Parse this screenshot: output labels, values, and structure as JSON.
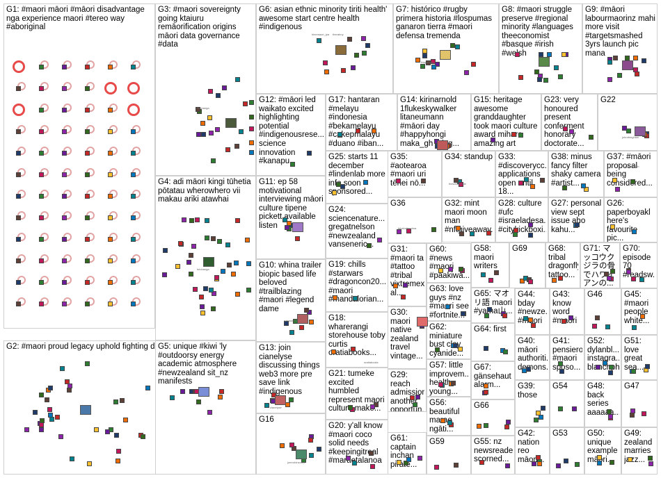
{
  "graph": {
    "groups": [
      {
        "id": "G1",
        "label": "G1: #maori māori #māori disadvantage nga experience maori #tereo way #aboriginal"
      },
      {
        "id": "G2",
        "label": "G2: #maori proud legacy uphold fighting defeating fascism uriohau"
      },
      {
        "id": "G3",
        "label": "G3: #maori sovereignty going ktaiuru remāorification origins māori data governance #data"
      },
      {
        "id": "G4",
        "label": "G4: adi māori kingi tūhetia pōtatau wherowhero vii makau ariki atawhai"
      },
      {
        "id": "G5",
        "label": "G5: unique #kiwi 'ly #outdoorsy energy academic atmosphere #newzealand sit_nz manifests"
      },
      {
        "id": "G6",
        "label": "G6: asian ethnic minority tiriti health' awesome start centre health #indigenous"
      },
      {
        "id": "G7",
        "label": "G7: histórico #rugby primera historia #lospumas ganaron tierra #maori defensa tremenda"
      },
      {
        "id": "G8",
        "label": "G8: #maori struggle preserve #regional minority #languages theeconomist #basque #irish #welsh"
      },
      {
        "id": "G9",
        "label": "G9: #māori labourmaorinz mahi more visit #targetsmashed 3yrs launch pic mana"
      },
      {
        "id": "G10",
        "label": "G10: whina trailer biopic based life beloved #trailblazing #maori #legend dame"
      },
      {
        "id": "G11",
        "label": "G11: ep 58 motivational interviewing māori culture tipene pickett available listen"
      },
      {
        "id": "G12",
        "label": "G12: #māori led waikato excited highlighting potential #indigenousrese... science innovation #kanapu"
      },
      {
        "id": "G13",
        "label": "G13: join cianelyse discussing things web3 more pre save link #indigenous"
      },
      {
        "id": "G14",
        "label": "G14: kirinarnold 1flukeskywalker litaneumann #māori day #happyhongi maka_gh thing..."
      },
      {
        "id": "G15",
        "label": "G15: heritage awesome granddaughter took maori culture award miharo amazing art"
      },
      {
        "id": "G16",
        "label": "G16"
      },
      {
        "id": "G17",
        "label": "G17: hantaran #melayu #indonesia #bekamelayu #cakepmalayu #duano #iban..."
      },
      {
        "id": "G18",
        "label": "G18: wharerangi storehouse toby curtis oratiabooks..."
      },
      {
        "id": "G19",
        "label": "G19: chills #starwars #dragoncon20... #maori #mandalorian..."
      },
      {
        "id": "G20",
        "label": "G20: y'all know #maori coco solid needs #keepingitreal #maraetalanoa"
      },
      {
        "id": "G21",
        "label": "G21: tumeke excited humbled represent maori culture make..."
      },
      {
        "id": "G22",
        "label": "G22"
      },
      {
        "id": "G23",
        "label": "G23: very honoured present conferment honorary doctorate..."
      },
      {
        "id": "G24",
        "label": "G24: sciencenature... gregatnelson #newzealand vanseneric..."
      },
      {
        "id": "G25",
        "label": "G25: starts 11 december #lindenlab more info soon sponsored..."
      },
      {
        "id": "G26",
        "label": "G26: paperboyakl here's favourite pic..."
      },
      {
        "id": "G27",
        "label": "G27: personal view sept issue aho kahu..."
      },
      {
        "id": "G28",
        "label": "G28: culture #ufc #israeladesa... #citykickboxi..."
      },
      {
        "id": "G29",
        "label": "G29: reach admission another opportun... communi..."
      },
      {
        "id": "G30",
        "label": "G30: maori native zealand travel vintage..."
      },
      {
        "id": "G31",
        "label": "G31: #maori ta #tattoo #tribal vixtremex al..."
      },
      {
        "id": "G32",
        "label": "G32: mint maori moon man #nftgiveaway..."
      },
      {
        "id": "G33",
        "label": "G33: #discoverycc... applications open until 18..."
      },
      {
        "id": "G34",
        "label": "G34: standup"
      },
      {
        "id": "G35",
        "label": "G35: #aotearoa #maori uri tēnei nō..."
      },
      {
        "id": "G36",
        "label": "G36"
      },
      {
        "id": "G37",
        "label": "G37: #māori proposal being considered..."
      },
      {
        "id": "G38",
        "label": "G38: minus fancy filter shaky camera #artist..."
      },
      {
        "id": "G39",
        "label": "G39: those"
      },
      {
        "id": "G40",
        "label": "G40: māori authoriti... demons..."
      },
      {
        "id": "G41",
        "label": "G41: pensiero #maori sposo..."
      },
      {
        "id": "G42",
        "label": "G42: nation reo māori..."
      },
      {
        "id": "G43",
        "label": "G43: know word #maori"
      },
      {
        "id": "G44",
        "label": "G44: bday #newze... #maori"
      },
      {
        "id": "G45",
        "label": "G45: #maori people white..."
      },
      {
        "id": "G46",
        "label": "G46"
      },
      {
        "id": "G47",
        "label": "G47"
      },
      {
        "id": "G48",
        "label": "G48: back series aaaaaa..."
      },
      {
        "id": "G49",
        "label": "G49: zealand marries jazz..."
      },
      {
        "id": "G50",
        "label": "G50: unique example māori..."
      },
      {
        "id": "G51",
        "label": "G51: love great sea..."
      },
      {
        "id": "G52",
        "label": "G52: dylanbl... instagra... blanchph..."
      },
      {
        "id": "G53",
        "label": "G53"
      },
      {
        "id": "G54",
        "label": "G54"
      },
      {
        "id": "G55",
        "label": "G55: nz newsreader scorned..."
      },
      {
        "id": "G56",
        "label": "G56: beautiful marae ngāti..."
      },
      {
        "id": "G57",
        "label": "G57: little improvem... health young..."
      },
      {
        "id": "G58",
        "label": "G58: maori writers"
      },
      {
        "id": "G59",
        "label": "G59"
      },
      {
        "id": "G60",
        "label": "G60: #news #maori #paakiwa..."
      },
      {
        "id": "G61",
        "label": "G61: captain inchan pirate..."
      },
      {
        "id": "G62",
        "label": "G62: miniature bust clay cyanide..."
      },
      {
        "id": "G63",
        "label": "G63: love guys #nz #maori see #fortnite..."
      },
      {
        "id": "G64",
        "label": "G64: first"
      },
      {
        "id": "G65",
        "label": "G65: マオリ語 maori #yama山..."
      },
      {
        "id": "G66",
        "label": "G66"
      },
      {
        "id": "G67",
        "label": "G67: gänsehaut alarm..."
      },
      {
        "id": "G68",
        "label": "G68: tribal dragonfly tattoo..."
      },
      {
        "id": "G69",
        "label": "G69"
      },
      {
        "id": "G70",
        "label": "G70: episode 70 #readsw..."
      },
      {
        "id": "G71",
        "label": "G71: マッコウクジラの骨でハワイアンの..."
      }
    ],
    "node_labels": [
      {
        "group": "G3",
        "text": "tuiohanga"
      },
      {
        "group": "G4",
        "text": "tuiohanga"
      },
      {
        "group": "G6",
        "text": "hinemaori_ipa"
      },
      {
        "group": "G6",
        "text": "theraboy"
      },
      {
        "group": "G7",
        "text": "frtapumas"
      },
      {
        "group": "G10",
        "text": "nzmaoriws"
      },
      {
        "group": "G13",
        "text": "cianelyse"
      },
      {
        "group": "G16",
        "text": "jonrrobinson_t"
      },
      {
        "group": "G18",
        "text": "oratiabooks"
      },
      {
        "group": "G22",
        "text": "johnrbingham"
      },
      {
        "group": "G34",
        "text": "thewelshtrade"
      },
      {
        "group": "G36",
        "text": "tekahuitaurima"
      },
      {
        "group": "G37",
        "text": "maoriwatch"
      }
    ],
    "colors": {
      "group_border": "#cfcfcf",
      "edge": "#a8a8a8",
      "edge_highlight": "#7fb1d8",
      "hub_ring": "#e84a4a",
      "node_palette": [
        "#1f3b6a",
        "#2e7d32",
        "#6a1b9a",
        "#c62828",
        "#ef6c00",
        "#00838f",
        "#5d4037",
        "#c2185b",
        "#8e24aa",
        "#33691e",
        "#fbc02d",
        "#0277bd"
      ]
    }
  }
}
